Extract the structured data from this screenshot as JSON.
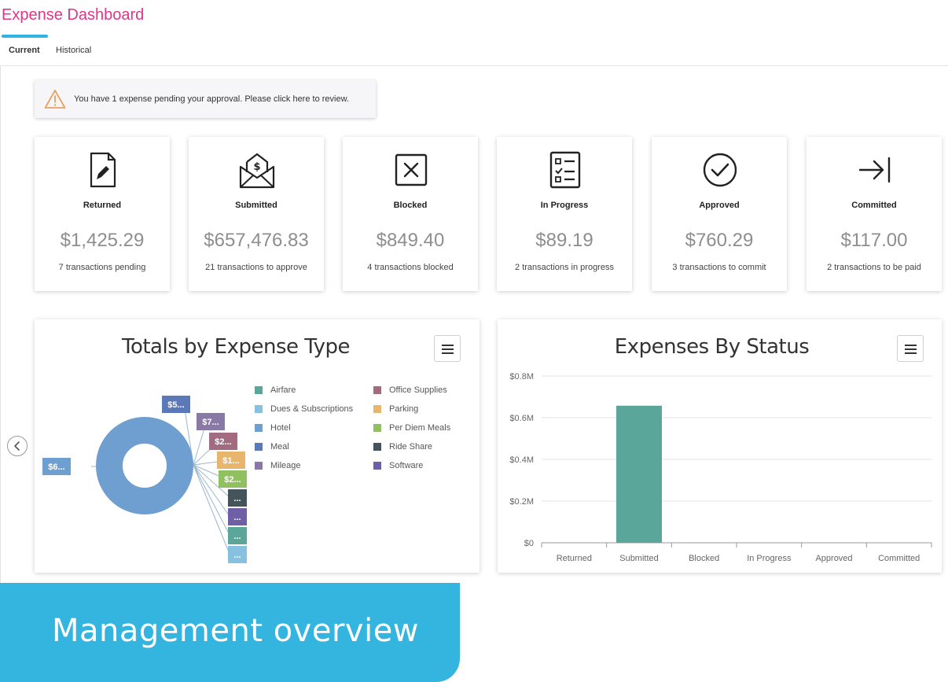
{
  "header": {
    "title": "Expense Dashboard"
  },
  "tabs": [
    {
      "label": "Current",
      "active": true
    },
    {
      "label": "Historical",
      "active": false
    }
  ],
  "alert": {
    "text": "You have 1 expense pending your approval. Please click here to review.",
    "icon": "warning-icon"
  },
  "cards": [
    {
      "label": "Returned",
      "amount": "$1,425.29",
      "sub": "7 transactions pending",
      "icon": "edit-document-icon"
    },
    {
      "label": "Submitted",
      "amount": "$657,476.83",
      "sub": "21 transactions to approve",
      "icon": "money-envelope-icon"
    },
    {
      "label": "Blocked",
      "amount": "$849.40",
      "sub": "4 transactions blocked",
      "icon": "blocked-box-icon"
    },
    {
      "label": "In Progress",
      "amount": "$89.19",
      "sub": "2 transactions in progress",
      "icon": "checklist-icon"
    },
    {
      "label": "Approved",
      "amount": "$760.29",
      "sub": "3 transactions to commit",
      "icon": "check-circle-icon"
    },
    {
      "label": "Committed",
      "amount": "$117.00",
      "sub": "2 transactions to be paid",
      "icon": "arrow-to-line-icon"
    }
  ],
  "donut": {
    "title": "Totals by Expense Type",
    "legend": [
      {
        "name": "Airfare",
        "color": "#5ba69a"
      },
      {
        "name": "Office Supplies",
        "color": "#a26b7f"
      },
      {
        "name": "Dues & Subscriptions",
        "color": "#86c1e0"
      },
      {
        "name": "Parking",
        "color": "#e8b56c"
      },
      {
        "name": "Hotel",
        "color": "#6f9fd0"
      },
      {
        "name": "Per Diem Meals",
        "color": "#91c061"
      },
      {
        "name": "Meal",
        "color": "#5b79b8"
      },
      {
        "name": "Ride Share",
        "color": "#43545a"
      },
      {
        "name": "Mileage",
        "color": "#8979a6"
      },
      {
        "name": "Software",
        "color": "#6e5fa6"
      }
    ],
    "tags": [
      {
        "text": "$6...",
        "color": "#6f9fd0"
      },
      {
        "text": "$5...",
        "color": "#5b79b8"
      },
      {
        "text": "$7...",
        "color": "#8979a6"
      },
      {
        "text": "$2...",
        "color": "#a26b7f"
      },
      {
        "text": "$1...",
        "color": "#e8b56c"
      },
      {
        "text": "$2...",
        "color": "#91c061"
      },
      {
        "text": "...",
        "color": "#43545a"
      },
      {
        "text": "...",
        "color": "#6e5fa6"
      },
      {
        "text": "...",
        "color": "#5ba69a"
      },
      {
        "text": "...",
        "color": "#86c1e0"
      }
    ]
  },
  "chart_data": {
    "type": "bar",
    "title": "Expenses By Status",
    "categories": [
      "Returned",
      "Submitted",
      "Blocked",
      "In Progress",
      "Approved",
      "Committed"
    ],
    "values": [
      1425.29,
      657476.83,
      849.4,
      89.19,
      760.29,
      117.0
    ],
    "ylim": [
      0,
      800000
    ],
    "yticks": [
      0,
      200000,
      400000,
      600000,
      800000
    ],
    "ytick_labels": [
      "$0",
      "$0.2M",
      "$0.4M",
      "$0.6M",
      "$0.8M"
    ],
    "color": "#5ba69a",
    "grid": true,
    "xlabel": "",
    "ylabel": ""
  },
  "banner": {
    "text": "Management overview"
  }
}
